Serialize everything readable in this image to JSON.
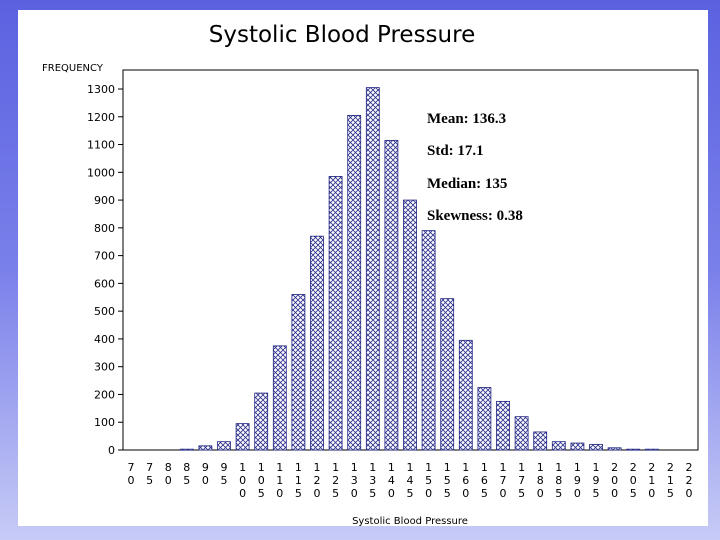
{
  "chart_data": {
    "type": "bar",
    "title": "Systolic Blood Pressure",
    "ylabel": "FREQUENCY",
    "xlabel": "Systolic Blood Pressure",
    "ylim": [
      0,
      1300
    ],
    "yticks": [
      0,
      100,
      200,
      300,
      400,
      500,
      600,
      700,
      800,
      900,
      1000,
      1100,
      1200,
      1300
    ],
    "categories": [
      "70",
      "75",
      "80",
      "85",
      "90",
      "95",
      "100",
      "105",
      "110",
      "115",
      "120",
      "125",
      "130",
      "135",
      "140",
      "145",
      "150",
      "155",
      "160",
      "165",
      "170",
      "175",
      "180",
      "185",
      "190",
      "195",
      "200",
      "205",
      "210",
      "215",
      "220"
    ],
    "values": [
      0,
      0,
      0,
      3,
      15,
      30,
      95,
      205,
      375,
      560,
      770,
      985,
      1205,
      1305,
      1115,
      900,
      790,
      545,
      395,
      225,
      175,
      120,
      65,
      30,
      25,
      20,
      8,
      3,
      3,
      0,
      0
    ],
    "annotations": [
      "Mean:  136.3",
      "Std:  17.1",
      "Median: 135",
      "Skewness: 0.38"
    ]
  }
}
